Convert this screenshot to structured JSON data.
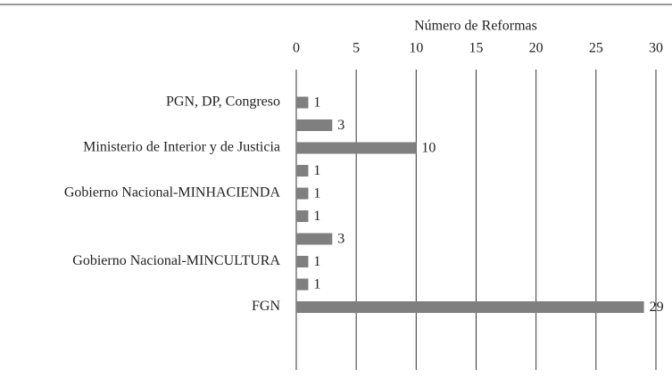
{
  "chart_data": {
    "type": "bar",
    "orientation": "horizontal",
    "xlabel": "Número de Reformas",
    "categories": [
      "PGN, DP, Congreso",
      null,
      "Ministerio de Interior y de Justicia",
      null,
      "Gobierno Nacional-MINHACIENDA",
      null,
      null,
      "Gobierno Nacional-MINCULTURA",
      null,
      "FGN"
    ],
    "values": [
      1,
      3,
      10,
      1,
      1,
      1,
      3,
      1,
      1,
      29
    ],
    "color": "#7f7f7f",
    "xlim": [
      0,
      30
    ],
    "xticks": [
      0,
      5,
      10,
      15,
      20,
      25,
      30
    ],
    "grid": true
  }
}
